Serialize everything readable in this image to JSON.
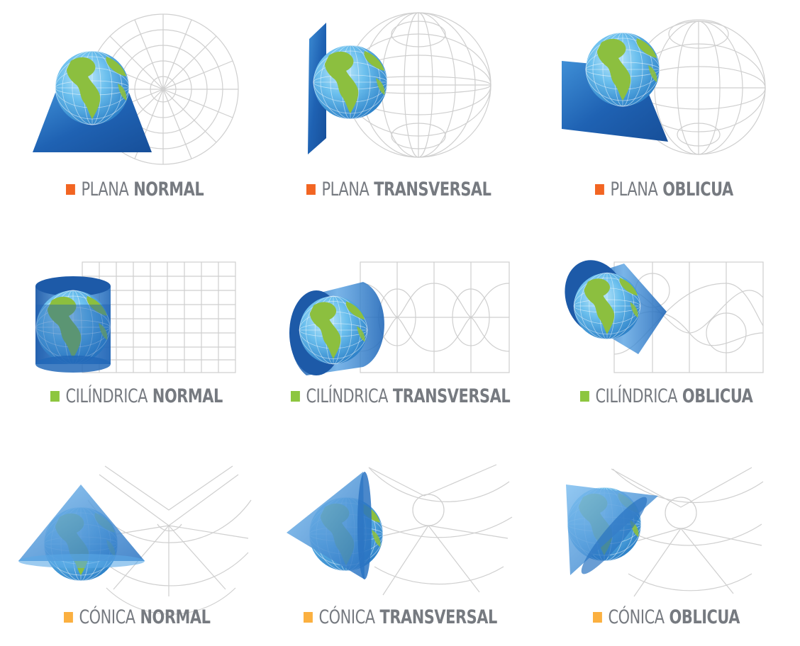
{
  "colors": {
    "plana": "#f26522",
    "cilindrica": "#8dc63f",
    "conica": "#fbb040",
    "projection_surface": "#1f5fae",
    "grid_line": "#cfcfcf",
    "ocean": "#5ab0e8",
    "land": "#8cbf3f"
  },
  "panels": [
    {
      "id": "plana-normal",
      "family": "plana",
      "type_label": "PLANA",
      "aspect_label": "NORMAL"
    },
    {
      "id": "plana-transversal",
      "family": "plana",
      "type_label": "PLANA",
      "aspect_label": "TRANSVERSAL"
    },
    {
      "id": "plana-oblicua",
      "family": "plana",
      "type_label": "PLANA",
      "aspect_label": "OBLICUA"
    },
    {
      "id": "cilindrica-normal",
      "family": "cilindrica",
      "type_label": "CILÍNDRICA",
      "aspect_label": "NORMAL"
    },
    {
      "id": "cilindrica-transversal",
      "family": "cilindrica",
      "type_label": "CILÍNDRICA",
      "aspect_label": "TRANSVERSAL"
    },
    {
      "id": "cilindrica-oblicua",
      "family": "cilindrica",
      "type_label": "CILÍNDRICA",
      "aspect_label": "OBLICUA"
    },
    {
      "id": "conica-normal",
      "family": "conica",
      "type_label": "CÓNICA",
      "aspect_label": "NORMAL"
    },
    {
      "id": "conica-transversal",
      "family": "conica",
      "type_label": "CÓNICA",
      "aspect_label": "TRANSVERSAL"
    },
    {
      "id": "conica-oblicua",
      "family": "conica",
      "type_label": "CÓNICA",
      "aspect_label": "OBLICUA"
    }
  ]
}
